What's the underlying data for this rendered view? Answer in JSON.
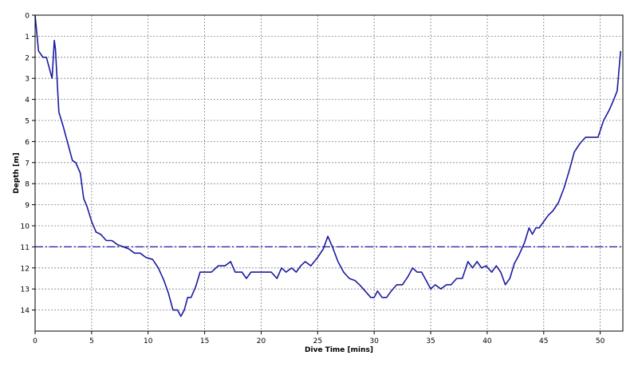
{
  "chart_data": {
    "type": "line",
    "title": "",
    "xlabel": "Dive Time [mins]",
    "ylabel": "Depth [m]",
    "xlim": [
      0,
      52
    ],
    "ylim": [
      0,
      15
    ],
    "y_inverted": true,
    "grid": true,
    "legend": "none",
    "x_ticks": [
      0,
      5,
      10,
      15,
      20,
      25,
      30,
      35,
      40,
      45,
      50
    ],
    "y_ticks": [
      0,
      1,
      2,
      3,
      4,
      5,
      6,
      7,
      8,
      9,
      10,
      11,
      12,
      13,
      14
    ],
    "colors": {
      "series": "#1a1aa0",
      "reference_line": "#1a1aa0",
      "grid": "#808080",
      "frame": "#000000",
      "text": "#000000"
    },
    "reference_line": {
      "y": 11,
      "style": "dash-dot"
    },
    "series": [
      {
        "x": [
          0,
          0.3,
          0.7,
          1.0,
          1.3,
          1.5,
          1.7,
          1.8,
          2.1,
          2.5,
          2.9,
          3.3,
          3.6,
          4.0,
          4.3,
          4.6,
          5.0,
          5.4,
          5.8,
          6.3,
          6.8,
          7.3,
          7.8,
          8.3,
          8.8,
          9.3,
          9.8,
          10.4,
          10.9,
          11.4,
          11.8,
          12.2,
          12.6,
          12.9,
          13.2,
          13.5,
          13.8,
          14.2,
          14.6,
          15.0,
          15.6,
          16.2,
          16.8,
          17.3,
          17.7,
          18.3,
          18.7,
          19.1,
          19.7,
          20.3,
          20.9,
          21.4,
          21.8,
          22.2,
          22.7,
          23.1,
          23.5,
          23.9,
          24.4,
          25.0,
          25.5,
          25.9,
          26.3,
          26.8,
          27.3,
          27.8,
          28.3,
          28.7,
          29.2,
          29.7,
          30.0,
          30.3,
          30.7,
          31.1,
          31.5,
          32.0,
          32.5,
          33.0,
          33.4,
          33.8,
          34.2,
          34.6,
          35.0,
          35.4,
          35.9,
          36.4,
          36.8,
          37.3,
          37.8,
          38.3,
          38.7,
          39.1,
          39.5,
          39.9,
          40.4,
          40.8,
          41.2,
          41.6,
          42.0,
          42.4,
          42.8,
          43.3,
          43.7,
          44.0,
          44.3,
          44.6,
          45.0,
          45.4,
          45.8,
          46.3,
          46.8,
          47.3,
          47.7,
          48.2,
          48.7,
          49.3,
          49.8,
          50.3,
          50.8,
          51.2,
          51.5,
          51.8
        ],
        "y": [
          0,
          1.7,
          2.0,
          2.0,
          2.6,
          3.0,
          1.2,
          1.6,
          4.6,
          5.3,
          6.1,
          6.9,
          7.0,
          7.5,
          8.7,
          9.1,
          9.8,
          10.3,
          10.4,
          10.7,
          10.7,
          10.9,
          11.0,
          11.1,
          11.3,
          11.3,
          11.5,
          11.6,
          12.0,
          12.6,
          13.2,
          14.0,
          14.0,
          14.3,
          14.0,
          13.4,
          13.4,
          12.9,
          12.2,
          12.2,
          12.2,
          11.9,
          11.9,
          11.7,
          12.2,
          12.2,
          12.5,
          12.2,
          12.2,
          12.2,
          12.2,
          12.5,
          12.0,
          12.2,
          12.0,
          12.2,
          11.9,
          11.7,
          11.9,
          11.5,
          11.1,
          10.5,
          11.0,
          11.7,
          12.2,
          12.5,
          12.6,
          12.8,
          13.1,
          13.4,
          13.4,
          13.1,
          13.4,
          13.4,
          13.1,
          12.8,
          12.8,
          12.4,
          12.0,
          12.2,
          12.2,
          12.6,
          13.0,
          12.8,
          13.0,
          12.8,
          12.8,
          12.5,
          12.5,
          11.7,
          12.0,
          11.7,
          12.0,
          11.9,
          12.2,
          11.9,
          12.2,
          12.8,
          12.5,
          11.8,
          11.4,
          10.8,
          10.1,
          10.4,
          10.1,
          10.1,
          9.8,
          9.5,
          9.3,
          8.9,
          8.2,
          7.3,
          6.5,
          6.1,
          5.8,
          5.8,
          5.8,
          5.0,
          4.5,
          4.0,
          3.6,
          1.7
        ]
      }
    ]
  }
}
